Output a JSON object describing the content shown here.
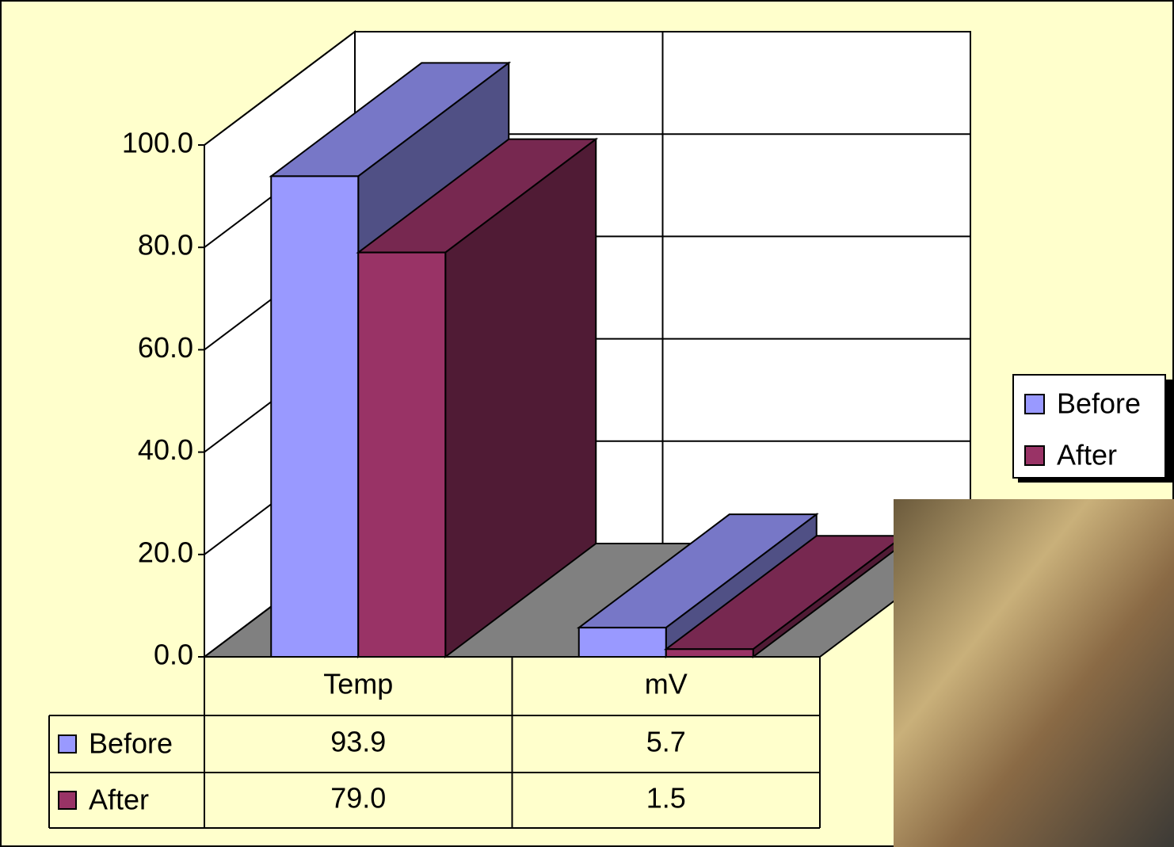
{
  "chart_data": {
    "type": "bar3d",
    "categories": [
      "Temp",
      "mV"
    ],
    "series": [
      {
        "name": "Before",
        "color": "#9999ff",
        "values": [
          93.9,
          5.7
        ],
        "value_labels": [
          "93.9",
          "5.7"
        ]
      },
      {
        "name": "After",
        "color": "#993366",
        "values": [
          79,
          1.5
        ],
        "value_labels": [
          "79.0",
          "1.5"
        ]
      }
    ],
    "ylim": [
      0,
      100
    ],
    "yticks": [
      {
        "value": 0,
        "label": "0.0"
      },
      {
        "value": 20,
        "label": "20.0"
      },
      {
        "value": 40,
        "label": "40.0"
      },
      {
        "value": 60,
        "label": "60.0"
      },
      {
        "value": 80,
        "label": "80.0"
      },
      {
        "value": 100,
        "label": "100.0"
      }
    ],
    "grid": true,
    "legend": "right",
    "data_table": true
  }
}
